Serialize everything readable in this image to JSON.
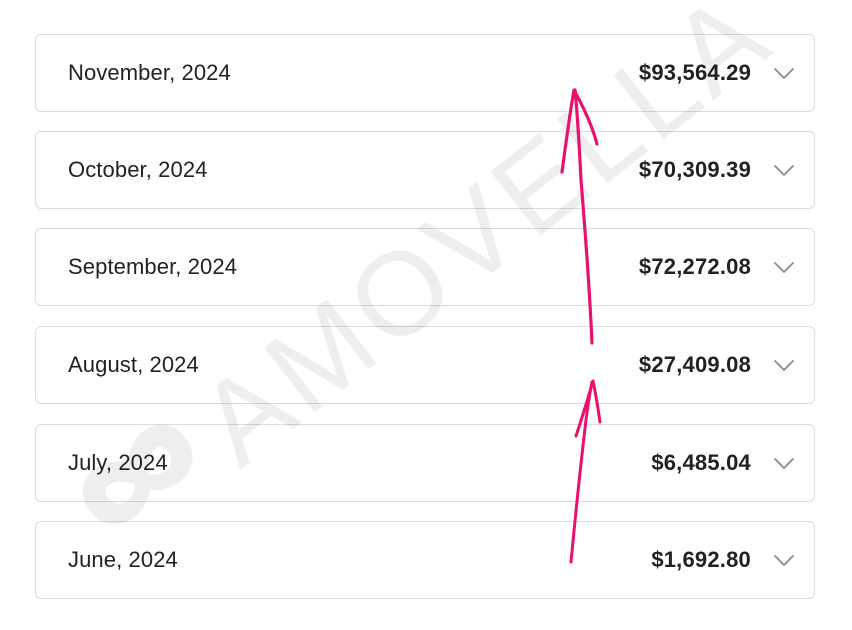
{
  "watermark": {
    "text": "AMOVELLA"
  },
  "annotation_color": "#e8116e",
  "months": [
    {
      "label": "November, 2024",
      "amount": "$93,564.29",
      "icon": "chevron-down-icon"
    },
    {
      "label": "October, 2024",
      "amount": "$70,309.39",
      "icon": "chevron-down-icon"
    },
    {
      "label": "September, 2024",
      "amount": "$72,272.08",
      "icon": "chevron-down-icon"
    },
    {
      "label": "August, 2024",
      "amount": "$27,409.08",
      "icon": "chevron-down-icon"
    },
    {
      "label": "July, 2024",
      "amount": "$6,485.04",
      "icon": "chevron-down-icon"
    },
    {
      "label": "June, 2024",
      "amount": "$1,692.80",
      "icon": "chevron-down-icon"
    }
  ]
}
